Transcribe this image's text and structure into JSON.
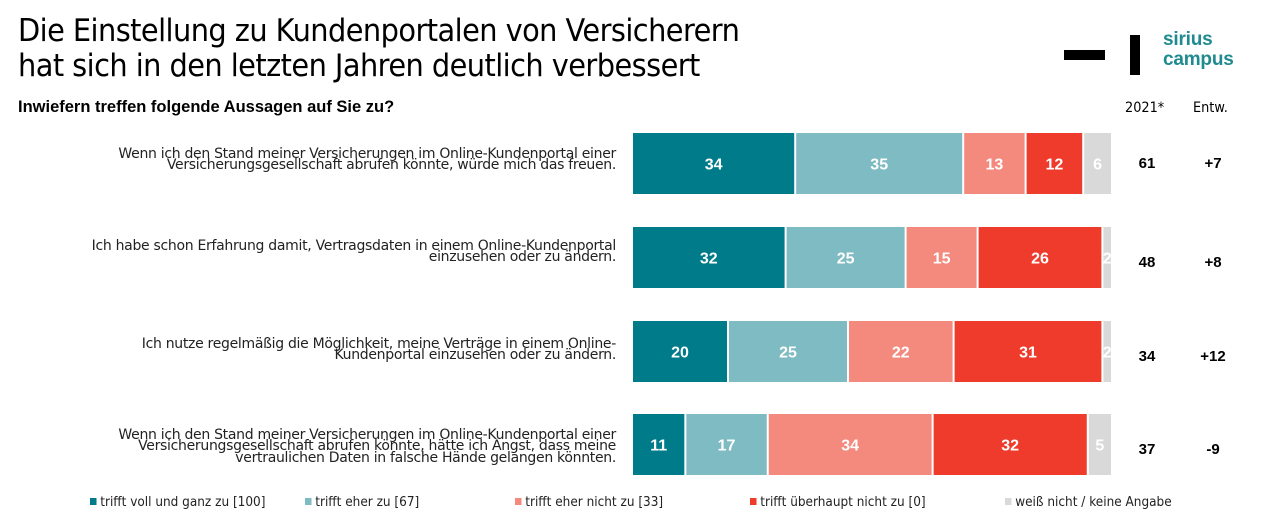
{
  "header": {
    "title_line1": "Die Einstellung zu Kundenportalen von Versicherern",
    "title_line2": "hat sich in den letzten Jahren deutlich verbessert",
    "subtitle": "Inwiefern treffen folgende Aussagen auf Sie zu?",
    "logo_line1": "sirius",
    "logo_line2": "campus"
  },
  "columns": {
    "year_label": "2021*",
    "dev_label": "Entw."
  },
  "colors": {
    "voll": "#007b8a",
    "eher": "#7fbbc3",
    "eher_nicht": "#f4897e",
    "ueberhaupt_nicht": "#ef3b2c",
    "weiss_nicht": "#d9d9d9",
    "logo": "#1f8a8f"
  },
  "chart_data": {
    "type": "bar",
    "orientation": "horizontal",
    "stacked": true,
    "title": "Die Einstellung zu Kundenportalen von Versicherern hat sich in den letzten Jahren deutlich verbessert",
    "subtitle": "Inwiefern treffen folgende Aussagen auf Sie zu?",
    "xlabel": "",
    "ylabel": "",
    "xlim": [
      0,
      100
    ],
    "grid": false,
    "legend_position": "bottom",
    "categories": [
      [
        "Wenn ich den Stand meiner Versicherungen im Online-Kundenportal einer",
        "Versicherungsgesellschaft abrufen könnte, würde mich das freuen."
      ],
      [
        "Ich habe schon Erfahrung damit, Vertragsdaten in einem Online-Kundenportal",
        "einzusehen oder zu ändern."
      ],
      [
        "Ich nutze regelmäßig die Möglichkeit, meine Verträge in einem Online-",
        "Kundenportal einzusehen oder zu ändern."
      ],
      [
        "Wenn ich den Stand meiner Versicherungen im Online-Kundenportal einer",
        "Versicherungsgesellschaft abrufen könnte, hätte ich Angst, dass meine",
        "vertraulichen Daten in falsche Hände gelangen könnten."
      ]
    ],
    "series": [
      {
        "name": "trifft voll und ganz zu [100]",
        "color_key": "voll",
        "values": [
          34,
          32,
          20,
          11
        ]
      },
      {
        "name": "trifft eher zu [67]",
        "color_key": "eher",
        "values": [
          35,
          25,
          25,
          17
        ]
      },
      {
        "name": "trifft eher nicht zu [33]",
        "color_key": "eher_nicht",
        "values": [
          13,
          15,
          22,
          34
        ]
      },
      {
        "name": "trifft überhaupt nicht zu [0]",
        "color_key": "ueberhaupt_nicht",
        "values": [
          12,
          26,
          31,
          32
        ]
      },
      {
        "name": "weiß nicht / keine Angabe",
        "color_key": "weiss_nicht",
        "values": [
          6,
          2,
          2,
          5
        ]
      }
    ],
    "index_2021": [
      "61",
      "48",
      "34",
      "37"
    ],
    "development": [
      "+7",
      "+8",
      "+12",
      "-9"
    ]
  }
}
